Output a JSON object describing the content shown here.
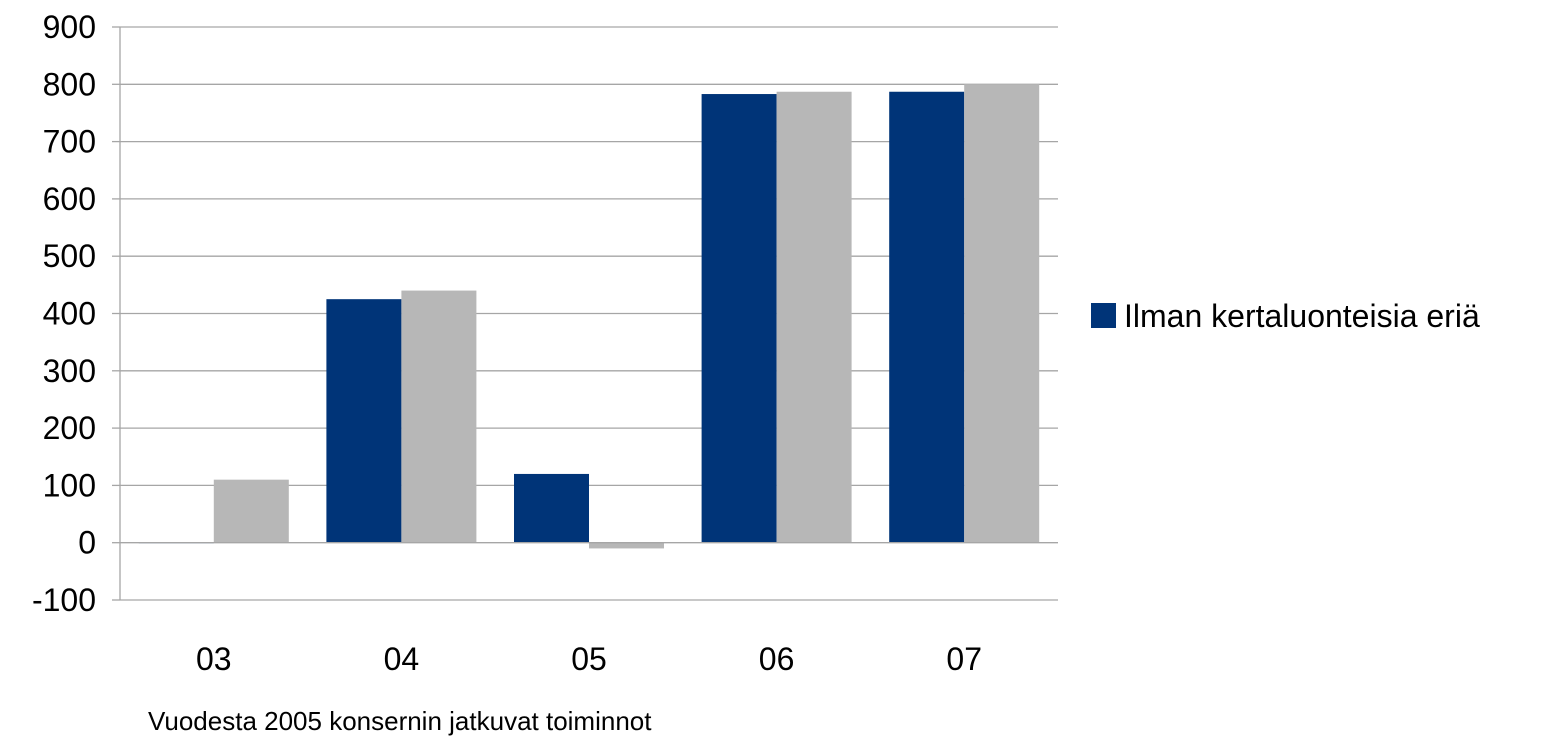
{
  "chart_data": {
    "type": "bar",
    "categories": [
      "03",
      "04",
      "05",
      "06",
      "07"
    ],
    "series": [
      {
        "name": "Ilman kertaluonteisia eriä",
        "values": [
          0,
          425,
          120,
          783,
          787
        ],
        "color": "#003478"
      },
      {
        "name": "",
        "values": [
          110,
          440,
          -10,
          787,
          800
        ],
        "color": "#b7b7b7"
      }
    ],
    "title": "",
    "xlabel": "",
    "ylabel": "",
    "ylim": [
      -100,
      900
    ],
    "yticks": [
      "-100",
      "0",
      "100",
      "200",
      "300",
      "400",
      "500",
      "600",
      "700",
      "800",
      "900"
    ],
    "grid": true,
    "legend_position": "right",
    "gridline_color": "#a6a6a6",
    "footnote": "Vuodesta 2005 konsernin jatkuvat toiminnot"
  }
}
